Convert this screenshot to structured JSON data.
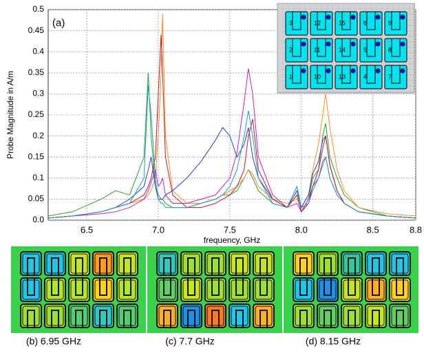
{
  "chart_data": {
    "type": "line",
    "annotation": "(a)",
    "x_label": "frequency, GHz",
    "y_label": "Probe Magnitude in A/m",
    "x": [
      6.23,
      6.4,
      6.6,
      6.7,
      6.8,
      6.9,
      6.93,
      6.95,
      6.98,
      7.0,
      7.02,
      7.03,
      7.05,
      7.1,
      7.2,
      7.3,
      7.4,
      7.45,
      7.5,
      7.55,
      7.6,
      7.63,
      7.66,
      7.7,
      7.8,
      7.9,
      7.97,
      8.0,
      8.05,
      8.08,
      8.12,
      8.15,
      8.17,
      8.2,
      8.25,
      8.3,
      8.4,
      8.6,
      8.8
    ],
    "series": [
      {
        "color": "#2ca02c",
        "values": [
          0.01,
          0.02,
          0.05,
          0.07,
          0.06,
          0.15,
          0.35,
          0.2,
          0.08,
          0.06,
          0.05,
          0.05,
          0.04,
          0.03,
          0.03,
          0.04,
          0.05,
          0.06,
          0.06,
          0.07,
          0.1,
          0.12,
          0.1,
          0.07,
          0.04,
          0.03,
          0.06,
          0.02,
          0.05,
          0.1,
          0.12,
          0.2,
          0.23,
          0.15,
          0.1,
          0.06,
          0.03,
          0.01,
          0.005
        ]
      },
      {
        "color": "#ff8c1a",
        "values": [
          0.005,
          0.01,
          0.02,
          0.03,
          0.04,
          0.05,
          0.06,
          0.07,
          0.1,
          0.2,
          0.35,
          0.49,
          0.2,
          0.07,
          0.04,
          0.04,
          0.05,
          0.06,
          0.07,
          0.08,
          0.1,
          0.12,
          0.11,
          0.08,
          0.05,
          0.04,
          0.05,
          0.03,
          0.06,
          0.12,
          0.18,
          0.25,
          0.3,
          0.22,
          0.12,
          0.07,
          0.03,
          0.015,
          0.01
        ]
      },
      {
        "color": "#1f3fd6",
        "values": [
          0.005,
          0.01,
          0.02,
          0.03,
          0.05,
          0.08,
          0.12,
          0.15,
          0.08,
          0.05,
          0.05,
          0.05,
          0.06,
          0.07,
          0.1,
          0.14,
          0.19,
          0.22,
          0.2,
          0.15,
          0.18,
          0.22,
          0.15,
          0.1,
          0.05,
          0.03,
          0.07,
          0.03,
          0.06,
          0.11,
          0.14,
          0.19,
          0.2,
          0.13,
          0.07,
          0.04,
          0.02,
          0.01,
          0.005
        ]
      },
      {
        "color": "#c020c0",
        "values": [
          0.005,
          0.01,
          0.015,
          0.02,
          0.03,
          0.05,
          0.07,
          0.09,
          0.12,
          0.08,
          0.09,
          0.1,
          0.06,
          0.04,
          0.04,
          0.05,
          0.06,
          0.08,
          0.1,
          0.16,
          0.28,
          0.36,
          0.3,
          0.15,
          0.06,
          0.03,
          0.04,
          0.02,
          0.05,
          0.08,
          0.1,
          0.14,
          0.15,
          0.1,
          0.06,
          0.04,
          0.02,
          0.01,
          0.005
        ]
      },
      {
        "color": "#c0182a",
        "values": [
          0.005,
          0.01,
          0.02,
          0.03,
          0.04,
          0.06,
          0.08,
          0.1,
          0.15,
          0.3,
          0.44,
          0.35,
          0.15,
          0.06,
          0.03,
          0.03,
          0.04,
          0.05,
          0.06,
          0.08,
          0.12,
          0.2,
          0.24,
          0.12,
          0.05,
          0.03,
          0.06,
          0.02,
          0.04,
          0.08,
          0.12,
          0.17,
          0.2,
          0.13,
          0.07,
          0.04,
          0.02,
          0.01,
          0.005
        ]
      },
      {
        "color": "#17a2b8",
        "values": [
          0.005,
          0.01,
          0.02,
          0.03,
          0.04,
          0.1,
          0.32,
          0.25,
          0.1,
          0.05,
          0.04,
          0.04,
          0.03,
          0.03,
          0.03,
          0.04,
          0.05,
          0.06,
          0.08,
          0.12,
          0.2,
          0.26,
          0.2,
          0.1,
          0.04,
          0.03,
          0.08,
          0.03,
          0.04,
          0.07,
          0.1,
          0.13,
          0.15,
          0.1,
          0.06,
          0.04,
          0.02,
          0.01,
          0.005
        ]
      }
    ],
    "xlim": [
      6.23,
      8.8
    ],
    "xticks": [
      6.5,
      {
        "value": 7,
        "label": "7.0"
      },
      7.5,
      {
        "value": 8,
        "label": "8.0"
      },
      8.5,
      8.8
    ],
    "ylim": [
      0,
      0.5
    ],
    "yticks": [
      {
        "value": 0,
        "label": "0.0"
      },
      0.05,
      0.1,
      0.15,
      0.2,
      0.25,
      0.3,
      0.35,
      0.4,
      0.45,
      0.5
    ],
    "grid": true
  },
  "inset": {
    "rows": [
      [
        "3",
        "12",
        "15",
        "6",
        "9"
      ],
      [
        "2",
        "11",
        "14",
        "5",
        "8"
      ],
      [
        "1",
        "10",
        "13",
        "4",
        "7"
      ]
    ]
  },
  "panels": [
    {
      "caption": "(b) 6.95 GHz"
    },
    {
      "caption": "(c) 7.7 GHz"
    },
    {
      "caption": "(d) 8.15 GHz"
    }
  ]
}
